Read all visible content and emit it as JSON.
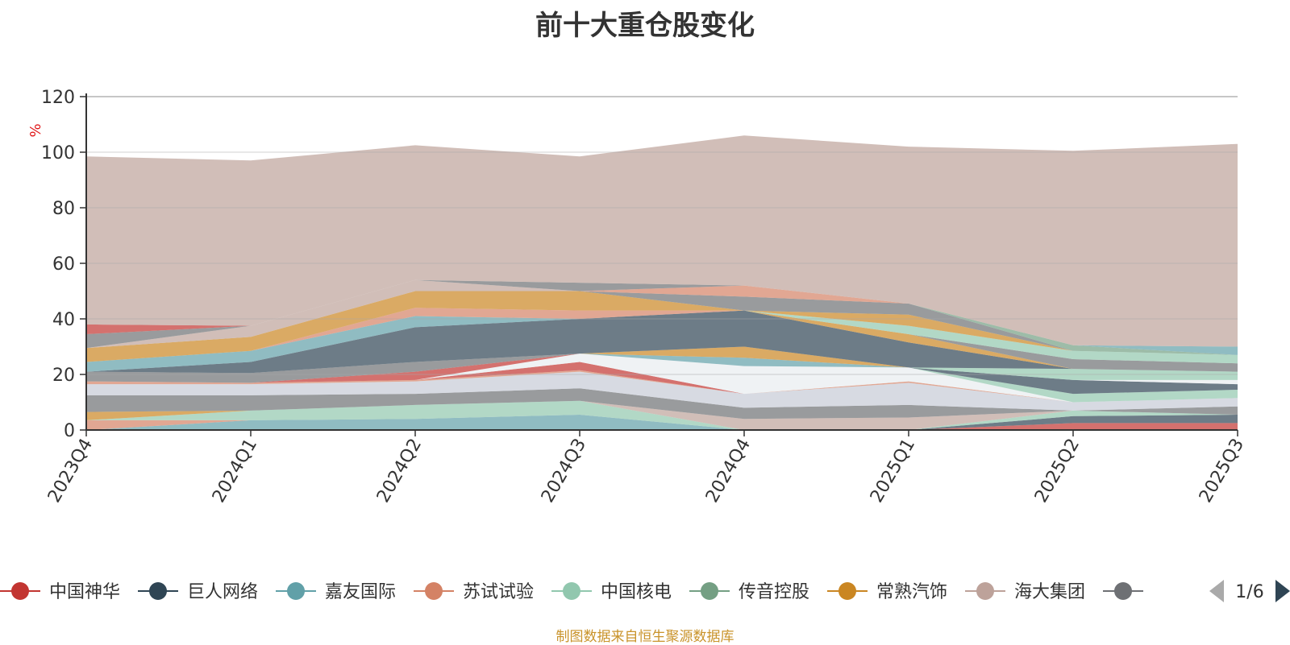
{
  "title": "前十大重仓股变化",
  "source_text": "制图数据来自恒生聚源数据库",
  "source_color": "#c9932a",
  "legend_page": "1/6",
  "chart_data": {
    "type": "area",
    "stacked": true,
    "title": "前十大重仓股变化",
    "ylabel": "%",
    "ylim": [
      0,
      120
    ],
    "yticks": [
      0,
      20,
      40,
      60,
      80,
      100,
      120
    ],
    "grid": true,
    "legend_position": "bottom",
    "categories": [
      "2023Q4",
      "2024Q1",
      "2024Q2",
      "2024Q3",
      "2024Q4",
      "2025Q1",
      "2025Q2",
      "2025Q3"
    ],
    "series": [
      {
        "name": "中国神华",
        "color": "#c23531",
        "values": [
          0,
          0,
          0,
          0,
          0,
          0,
          2.5,
          2.5
        ]
      },
      {
        "name": "巨人网络",
        "color": "#2f4554",
        "values": [
          0,
          0,
          0,
          0,
          0,
          0,
          2.5,
          3
        ]
      },
      {
        "name": "嘉友国际",
        "color": "#61a0a8",
        "values": [
          0,
          3.5,
          4,
          5.5,
          0,
          0,
          0,
          0
        ]
      },
      {
        "name": "苏试试验",
        "color": "#d48265",
        "values": [
          3.5,
          0,
          0,
          0,
          0,
          0,
          0,
          0
        ]
      },
      {
        "name": "中国核电",
        "color": "#91c7ae",
        "values": [
          0,
          3.5,
          5,
          5,
          0,
          0,
          2,
          0
        ]
      },
      {
        "name": "传音控股",
        "color": "#749f83",
        "values": [
          0,
          0,
          0,
          0,
          0,
          0,
          0,
          0
        ]
      },
      {
        "name": "常熟汽饰",
        "color": "#ca8622",
        "values": [
          3,
          0,
          0,
          0,
          0,
          0,
          0,
          0
        ]
      },
      {
        "name": "海大集团",
        "color": "#bda29a",
        "values": [
          0,
          0,
          0,
          0,
          4,
          4.5,
          0,
          0
        ]
      },
      {
        "name": "",
        "color": "#6e7074",
        "values": [
          6,
          5.5,
          4,
          4.5,
          4,
          4.5,
          0,
          3
        ]
      },
      {
        "name": "",
        "color": "#c6cbd6",
        "values": [
          4,
          4,
          4.5,
          6,
          5,
          8,
          3,
          3
        ]
      },
      {
        "name": "",
        "color": "#d48265",
        "values": [
          1,
          0.5,
          0.5,
          0.5,
          0,
          0.5,
          0,
          0
        ]
      },
      {
        "name": "",
        "color": "#c23531",
        "values": [
          0,
          0,
          0,
          3,
          0,
          0,
          0,
          0
        ]
      },
      {
        "name": "",
        "color": "#e8ecf0",
        "values": [
          0,
          0,
          0,
          3,
          10,
          5,
          0,
          0
        ]
      },
      {
        "name": "",
        "color": "#c23531",
        "values": [
          0,
          0,
          3,
          0,
          0,
          0,
          0,
          0
        ]
      },
      {
        "name": "",
        "color": "#6e7074",
        "values": [
          3.5,
          3.5,
          3.5,
          0,
          0,
          0,
          0,
          0
        ]
      },
      {
        "name": "",
        "color": "#91c7ae",
        "values": [
          0,
          0,
          0,
          0,
          0,
          0,
          3,
          3
        ]
      },
      {
        "name": "",
        "color": "#61a0a8",
        "values": [
          0,
          0,
          0,
          0,
          3,
          0,
          0,
          0
        ]
      },
      {
        "name": "",
        "color": "#ca8622",
        "values": [
          0,
          0,
          0,
          0,
          4,
          0,
          0,
          0
        ]
      },
      {
        "name": "",
        "color": "#2f4554",
        "values": [
          0,
          0,
          0,
          0,
          0,
          0,
          5,
          2
        ]
      },
      {
        "name": "",
        "color": "#e8ecf0",
        "values": [
          0,
          0,
          0,
          0,
          0,
          0,
          0,
          1.5
        ]
      },
      {
        "name": "",
        "color": "#91c7ae",
        "values": [
          0,
          0,
          0,
          0,
          0,
          0,
          4,
          3
        ]
      },
      {
        "name": "",
        "color": "#2f4554",
        "values": [
          0,
          4,
          12.5,
          12.5,
          13,
          9,
          0,
          0
        ]
      },
      {
        "name": "",
        "color": "#ca8622",
        "values": [
          0,
          0,
          0,
          0,
          0,
          3,
          0,
          0
        ]
      },
      {
        "name": "",
        "color": "#6e7074",
        "values": [
          0,
          0,
          0,
          0,
          0,
          0,
          3.5,
          3
        ]
      },
      {
        "name": "",
        "color": "#61a0a8",
        "values": [
          3.5,
          4,
          4,
          0,
          0,
          0,
          0,
          0
        ]
      },
      {
        "name": "",
        "color": "#91c7ae",
        "values": [
          0,
          0,
          0,
          0,
          0,
          3,
          3,
          3
        ]
      },
      {
        "name": "",
        "color": "#d48265",
        "values": [
          0,
          0,
          3,
          3,
          0,
          0,
          0,
          0
        ]
      },
      {
        "name": "",
        "color": "#ca8622",
        "values": [
          5,
          5,
          6,
          7,
          0,
          4,
          0,
          0
        ]
      },
      {
        "name": "",
        "color": "#6e7074",
        "values": [
          0,
          0,
          0,
          0,
          5,
          4,
          0,
          0
        ]
      },
      {
        "name": "",
        "color": "#d48265",
        "values": [
          0,
          0,
          0,
          0,
          4,
          0,
          0,
          0
        ]
      },
      {
        "name": "",
        "color": "#749f83",
        "values": [
          0,
          0,
          0,
          0,
          0,
          0,
          2,
          0
        ]
      },
      {
        "name": "",
        "color": "#61a0a8",
        "values": [
          0,
          0,
          0,
          0,
          0,
          0,
          0,
          3
        ]
      },
      {
        "name": "",
        "color": "#bda29a",
        "values": [
          0,
          4,
          4,
          0,
          0,
          0,
          0,
          0
        ]
      },
      {
        "name": "",
        "color": "#6e7074",
        "values": [
          5,
          0,
          0,
          3,
          0,
          0,
          0,
          0
        ]
      },
      {
        "name": "",
        "color": "#c23531",
        "values": [
          3.5,
          0,
          0,
          0,
          0,
          0,
          0,
          0
        ]
      },
      {
        "name": "",
        "color": "#bda29a",
        "values": [
          60.5,
          59.5,
          48.5,
          45.5,
          54,
          56.5,
          70,
          73
        ]
      }
    ]
  }
}
